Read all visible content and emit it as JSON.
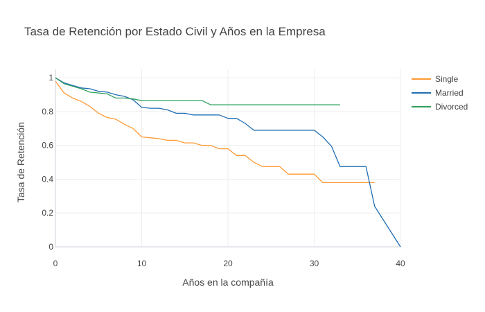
{
  "chart_data": {
    "type": "line",
    "title": "Tasa de Retención por Estado Civil y Años en la Empresa",
    "xlabel": "Años en la compañía",
    "ylabel": "Tasa de Retención",
    "xlim": [
      0,
      40
    ],
    "ylim": [
      0,
      1.05
    ],
    "xticks": [
      0,
      10,
      20,
      30,
      40
    ],
    "yticks": [
      0,
      0.2,
      0.4,
      0.6,
      0.8,
      1
    ],
    "ytick_labels": [
      "0",
      "0.2",
      "0.4",
      "0.6",
      "0.8",
      "1"
    ],
    "grid": true,
    "legend_position": "top-right",
    "series": [
      {
        "name": "Single",
        "color": "#ff9933",
        "x": [
          0,
          1,
          2,
          3,
          4,
          5,
          6,
          7,
          8,
          9,
          10,
          11,
          12,
          13,
          14,
          15,
          16,
          17,
          18,
          19,
          20,
          21,
          22,
          23,
          24,
          25,
          26,
          27,
          28,
          29,
          30,
          31,
          32,
          33,
          34,
          35,
          36,
          37
        ],
        "y": [
          0.98,
          0.91,
          0.88,
          0.86,
          0.83,
          0.79,
          0.765,
          0.755,
          0.725,
          0.7,
          0.65,
          0.645,
          0.64,
          0.63,
          0.63,
          0.615,
          0.615,
          0.6,
          0.6,
          0.58,
          0.58,
          0.54,
          0.54,
          0.5,
          0.475,
          0.475,
          0.475,
          0.43,
          0.43,
          0.43,
          0.43,
          0.38,
          0.38,
          0.38,
          0.38,
          0.38,
          0.38,
          0.38
        ]
      },
      {
        "name": "Married",
        "color": "#1f6db3",
        "x": [
          0,
          1,
          2,
          3,
          4,
          5,
          6,
          7,
          8,
          9,
          10,
          11,
          12,
          13,
          14,
          15,
          16,
          17,
          18,
          19,
          20,
          21,
          22,
          23,
          24,
          25,
          26,
          27,
          28,
          29,
          30,
          31,
          32,
          33,
          34,
          35,
          36,
          37,
          40
        ],
        "y": [
          1.0,
          0.97,
          0.955,
          0.94,
          0.935,
          0.92,
          0.915,
          0.9,
          0.89,
          0.87,
          0.825,
          0.82,
          0.82,
          0.81,
          0.79,
          0.79,
          0.78,
          0.78,
          0.78,
          0.78,
          0.76,
          0.76,
          0.73,
          0.69,
          0.69,
          0.69,
          0.69,
          0.69,
          0.69,
          0.69,
          0.69,
          0.65,
          0.595,
          0.475,
          0.475,
          0.475,
          0.475,
          0.24,
          0.0
        ]
      },
      {
        "name": "Divorced",
        "color": "#2ca05a",
        "x": [
          0,
          1,
          2,
          3,
          4,
          5,
          6,
          7,
          8,
          9,
          10,
          11,
          12,
          13,
          14,
          15,
          16,
          17,
          18,
          19,
          20,
          21,
          22,
          23,
          24,
          25,
          26,
          27,
          28,
          29,
          30,
          31,
          32,
          33
        ],
        "y": [
          1.0,
          0.965,
          0.95,
          0.935,
          0.915,
          0.91,
          0.905,
          0.88,
          0.88,
          0.875,
          0.865,
          0.865,
          0.865,
          0.865,
          0.865,
          0.865,
          0.865,
          0.865,
          0.84,
          0.84,
          0.84,
          0.84,
          0.84,
          0.84,
          0.84,
          0.84,
          0.84,
          0.84,
          0.84,
          0.84,
          0.84,
          0.84,
          0.84,
          0.84
        ]
      }
    ]
  }
}
